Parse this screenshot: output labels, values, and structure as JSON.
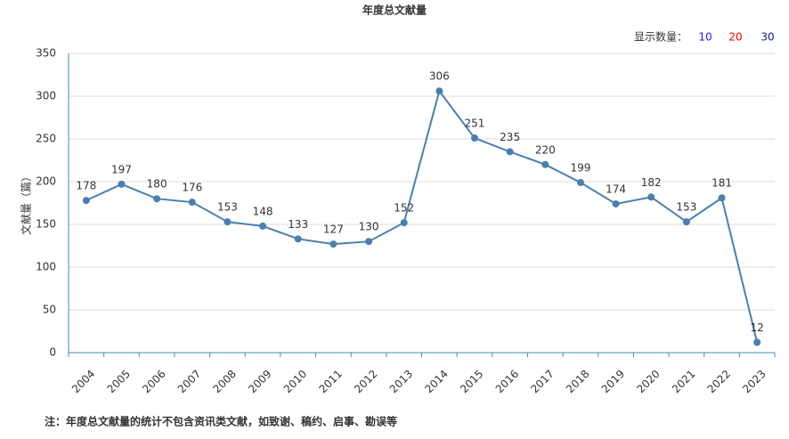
{
  "chart_data": {
    "type": "line",
    "title": "年度总文献量",
    "y_label": "文献量（篇）",
    "display_count": {
      "label": "显示数量：",
      "options": [
        "10",
        "20",
        "30"
      ]
    },
    "categories": [
      "2004",
      "2005",
      "2006",
      "2007",
      "2008",
      "2009",
      "2010",
      "2011",
      "2012",
      "2013",
      "2014",
      "2015",
      "2016",
      "2017",
      "2018",
      "2019",
      "2020",
      "2021",
      "2022",
      "2023"
    ],
    "series": [
      {
        "color": "#4a7fb0",
        "values": [
          178,
          197,
          180,
          176,
          153,
          148,
          133,
          127,
          130,
          152,
          306,
          251,
          235,
          220,
          199,
          174,
          182,
          153,
          181,
          12
        ]
      }
    ],
    "ylim": [
      0,
      350
    ],
    "yticks": [
      0,
      50,
      100,
      150,
      200,
      250,
      300,
      350
    ],
    "grid": true,
    "note": "注：年度总文献量的统计不包含资讯类文献，如致谢、稿约、启事、勘误等"
  }
}
